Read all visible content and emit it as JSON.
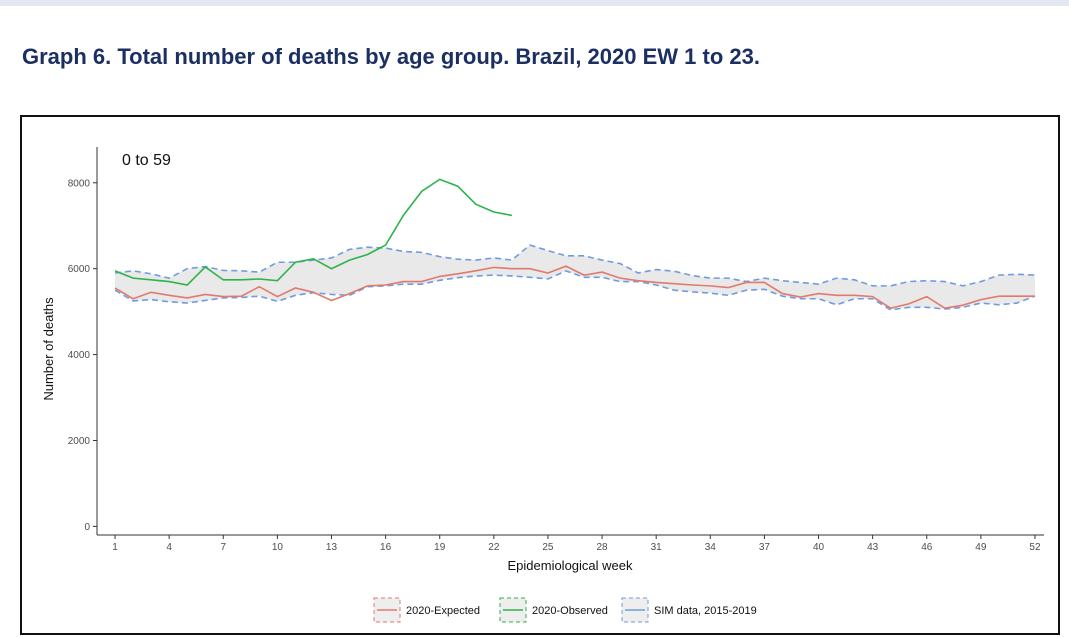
{
  "header": {
    "title": "Graph 6. Total number of deaths by age group. Brazil, 2020 EW 1 to 23."
  },
  "chart_data": {
    "type": "line",
    "panel_label": "0 to 59",
    "xlabel": "Epidemiological week",
    "ylabel": "Number of deaths",
    "xlim": [
      0,
      52.5
    ],
    "ylim": [
      -200,
      8600
    ],
    "x_ticks": [
      1,
      4,
      7,
      10,
      13,
      16,
      19,
      22,
      25,
      28,
      31,
      34,
      37,
      40,
      43,
      46,
      49,
      52
    ],
    "y_ticks": [
      0,
      2000,
      4000,
      6000,
      8000
    ],
    "grid": false,
    "legend_position": "bottom",
    "series": [
      {
        "name": "2020-Expected",
        "color": "#e07a6e",
        "x": [
          1,
          2,
          3,
          4,
          5,
          6,
          7,
          8,
          9,
          10,
          11,
          12,
          13,
          14,
          15,
          16,
          17,
          18,
          19,
          20,
          21,
          22,
          23,
          24,
          25,
          26,
          27,
          28,
          29,
          30,
          31,
          32,
          33,
          34,
          35,
          36,
          37,
          38,
          39,
          40,
          41,
          42,
          43,
          44,
          45,
          46,
          47,
          48,
          49,
          50,
          51,
          52
        ],
        "y": [
          5550,
          5300,
          5450,
          5380,
          5320,
          5400,
          5350,
          5360,
          5580,
          5350,
          5550,
          5450,
          5260,
          5420,
          5600,
          5620,
          5700,
          5700,
          5820,
          5880,
          5950,
          6030,
          6000,
          6000,
          5900,
          6060,
          5850,
          5920,
          5780,
          5720,
          5680,
          5650,
          5620,
          5600,
          5560,
          5680,
          5680,
          5420,
          5340,
          5420,
          5380,
          5380,
          5350,
          5080,
          5180,
          5350,
          5080,
          5150,
          5280,
          5360,
          5360,
          5360
        ]
      },
      {
        "name": "2020-Observed",
        "color": "#2db34a",
        "x": [
          1,
          2,
          3,
          4,
          5,
          6,
          7,
          8,
          9,
          10,
          11,
          12,
          13,
          14,
          15,
          16,
          17,
          18,
          19,
          20,
          21,
          22,
          23
        ],
        "y": [
          5950,
          5780,
          5740,
          5700,
          5620,
          6040,
          5740,
          5740,
          5760,
          5720,
          6150,
          6230,
          6000,
          6200,
          6330,
          6550,
          7250,
          7800,
          8080,
          7920,
          7500,
          7320,
          7240
        ]
      },
      {
        "name": "SIM data, 2015-2019",
        "color": "#6f9be0",
        "x": [
          1,
          2,
          3,
          4,
          5,
          6,
          7,
          8,
          9,
          10,
          11,
          12,
          13,
          14,
          15,
          16,
          17,
          18,
          19,
          20,
          21,
          22,
          23,
          24,
          25,
          26,
          27,
          28,
          29,
          30,
          31,
          32,
          33,
          34,
          35,
          36,
          37,
          38,
          39,
          40,
          41,
          42,
          43,
          44,
          45,
          46,
          47,
          48,
          49,
          50,
          51,
          52
        ],
        "upper": [
          5900,
          5950,
          5880,
          5780,
          6000,
          6050,
          5960,
          5950,
          5920,
          6150,
          6150,
          6200,
          6250,
          6450,
          6500,
          6480,
          6400,
          6380,
          6280,
          6220,
          6200,
          6250,
          6200,
          6550,
          6420,
          6300,
          6300,
          6200,
          6120,
          5900,
          5980,
          5940,
          5840,
          5780,
          5780,
          5700,
          5780,
          5720,
          5680,
          5640,
          5780,
          5740,
          5600,
          5600,
          5700,
          5720,
          5700,
          5600,
          5700,
          5850,
          5870,
          5850
        ],
        "lower": [
          5500,
          5250,
          5280,
          5230,
          5200,
          5260,
          5320,
          5330,
          5360,
          5240,
          5380,
          5440,
          5400,
          5380,
          5580,
          5600,
          5640,
          5640,
          5730,
          5790,
          5830,
          5850,
          5830,
          5800,
          5760,
          5950,
          5800,
          5800,
          5700,
          5700,
          5620,
          5500,
          5460,
          5430,
          5380,
          5500,
          5520,
          5360,
          5300,
          5300,
          5160,
          5300,
          5300,
          5040,
          5100,
          5100,
          5060,
          5100,
          5200,
          5160,
          5200,
          5360
        ]
      }
    ]
  }
}
